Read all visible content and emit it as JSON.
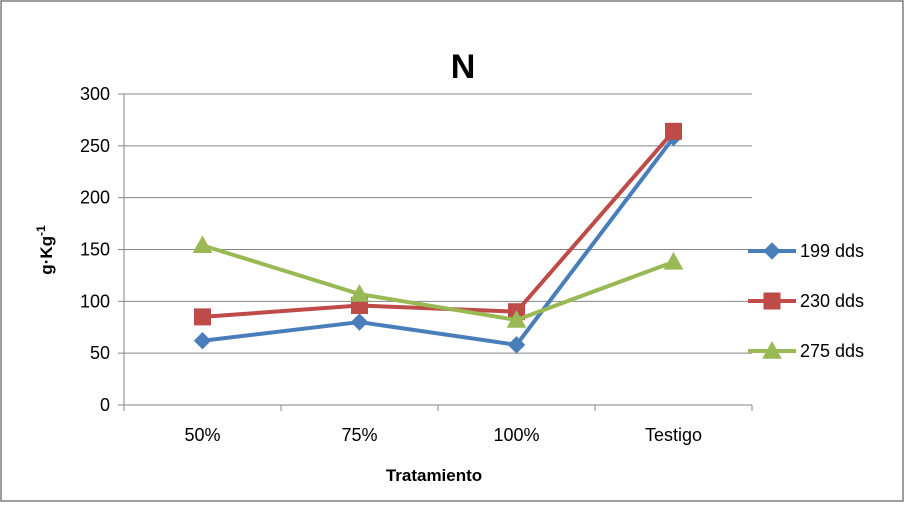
{
  "chart_data": {
    "type": "line",
    "title": "N",
    "xlabel": "Tratamiento",
    "ylabel": "g·Kg",
    "ylabel_superscript": "-1",
    "categories": [
      "50%",
      "75%",
      "100%",
      "Testigo"
    ],
    "ylim": [
      0,
      300
    ],
    "yticks": [
      "0",
      "50",
      "100",
      "150",
      "200",
      "250",
      "300"
    ],
    "grid": true,
    "legend_position": "right",
    "series": [
      {
        "name": "199 dds",
        "values": [
          62,
          80,
          58,
          258
        ],
        "color": "#4A7EBB",
        "marker": "diamond"
      },
      {
        "name": "230 dds",
        "values": [
          85,
          96,
          90,
          264
        ],
        "color": "#BE4B48",
        "marker": "square"
      },
      {
        "name": "275 dds",
        "values": [
          154,
          107,
          82,
          138
        ],
        "color": "#98B954",
        "marker": "triangle"
      }
    ]
  }
}
